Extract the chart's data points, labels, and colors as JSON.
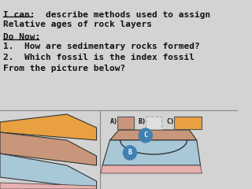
{
  "title_line1": "I can:  describe methods used to assign",
  "title_line2": "Relative ages of rock layers",
  "ican_underline": "I can:",
  "do_now_label": "Do Now:",
  "q1": "1.  How are sedimentary rocks formed?",
  "q2": "2.  Which fossil is the index fossil",
  "q3": "From the picture below?",
  "bg_color": "#d3d3d3",
  "text_color": "#111111",
  "font_family": "monospace",
  "label_A": "A)",
  "label_B": "B)",
  "label_C": "C)",
  "orange_layer": "#e8a040",
  "tan_layer": "#c8967a",
  "blue_layer": "#a8c8d8",
  "pink_base": "#e8b0b0",
  "fossil_tan": "#c8967a",
  "fossil_blue": "#4080b0",
  "fossil_orange": "#e8a040",
  "circle_blue": "#4080b0"
}
